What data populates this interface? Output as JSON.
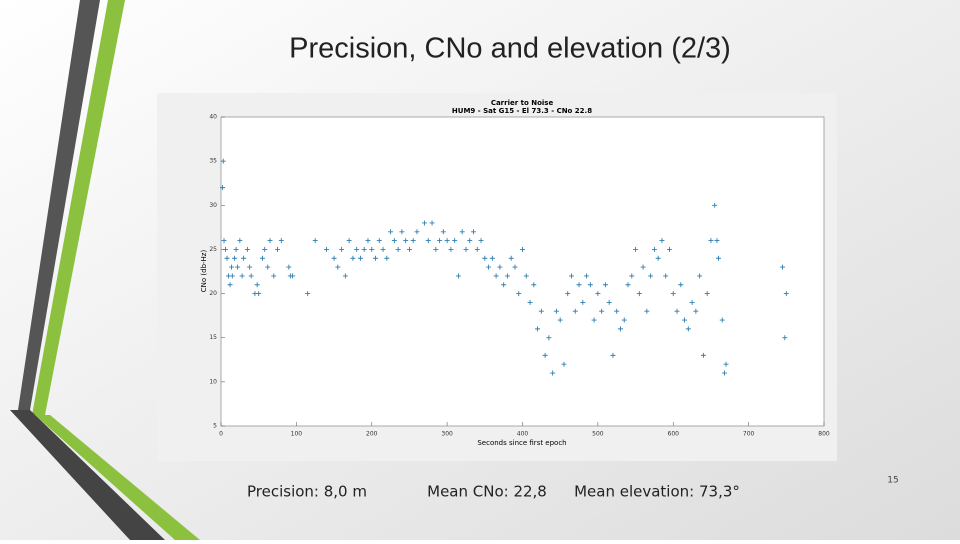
{
  "slide": {
    "title": "Precision, CNo and elevation (2/3)",
    "captions": [
      "Precision: 8,0 m",
      "Mean CNo: 22,8",
      "Mean elevation: 73,3°"
    ],
    "page_number": "15"
  },
  "chart_data": {
    "type": "scatter",
    "title": "Carrier to Noise",
    "subtitle": "HUM9 - Sat G15 - El 73.3 - CNo 22.8",
    "x_label": "Seconds since first epoch",
    "y_label": "CNo (db-Hz)",
    "color": "#2e7fb0",
    "marker": "+",
    "xlim": [
      0,
      800
    ],
    "xticks": [
      0,
      100,
      200,
      300,
      400,
      500,
      600,
      700,
      800
    ],
    "ylim": [
      5,
      40
    ],
    "yticks": [
      5,
      10,
      15,
      20,
      25,
      30,
      35,
      40
    ],
    "x": [
      2,
      3,
      4,
      6,
      8,
      10,
      12,
      14,
      15,
      18,
      20,
      22,
      25,
      28,
      30,
      35,
      38,
      40,
      45,
      48,
      50,
      55,
      58,
      62,
      65,
      70,
      75,
      80,
      90,
      92,
      95,
      115,
      125,
      140,
      150,
      155,
      160,
      165,
      170,
      175,
      180,
      185,
      190,
      195,
      200,
      205,
      210,
      215,
      220,
      225,
      230,
      235,
      240,
      245,
      250,
      255,
      260,
      270,
      275,
      280,
      285,
      290,
      295,
      300,
      305,
      310,
      315,
      320,
      325,
      330,
      335,
      340,
      345,
      350,
      355,
      360,
      365,
      370,
      375,
      380,
      385,
      390,
      395,
      400,
      405,
      410,
      415,
      420,
      425,
      430,
      435,
      440,
      445,
      450,
      455,
      460,
      465,
      470,
      475,
      480,
      485,
      490,
      495,
      500,
      505,
      510,
      515,
      520,
      525,
      530,
      535,
      540,
      545,
      550,
      555,
      560,
      565,
      570,
      575,
      580,
      585,
      590,
      595,
      600,
      605,
      610,
      615,
      620,
      625,
      630,
      635,
      640,
      645,
      650,
      655,
      658,
      660,
      665,
      668,
      670,
      745,
      748,
      750
    ],
    "values": [
      32,
      35,
      26,
      25,
      24,
      22,
      21,
      23,
      22,
      24,
      25,
      23,
      26,
      22,
      24,
      25,
      23,
      22,
      20,
      21,
      20,
      24,
      25,
      23,
      26,
      22,
      25,
      26,
      23,
      22,
      22,
      20,
      26,
      25,
      24,
      23,
      25,
      22,
      26,
      24,
      25,
      24,
      25,
      26,
      25,
      24,
      26,
      25,
      24,
      27,
      26,
      25,
      27,
      26,
      25,
      26,
      27,
      28,
      26,
      28,
      25,
      26,
      27,
      26,
      25,
      26,
      22,
      27,
      25,
      26,
      27,
      25,
      26,
      24,
      23,
      24,
      22,
      23,
      21,
      22,
      24,
      23,
      20,
      25,
      22,
      19,
      21,
      16,
      18,
      13,
      15,
      11,
      18,
      17,
      12,
      20,
      22,
      18,
      21,
      19,
      22,
      21,
      17,
      20,
      18,
      21,
      19,
      13,
      18,
      16,
      17,
      21,
      22,
      25,
      20,
      23,
      18,
      22,
      25,
      24,
      26,
      22,
      25,
      20,
      18,
      21,
      17,
      16,
      19,
      18,
      22,
      13,
      20,
      26,
      30,
      26,
      24,
      17,
      11,
      12,
      23,
      15,
      20
    ]
  }
}
